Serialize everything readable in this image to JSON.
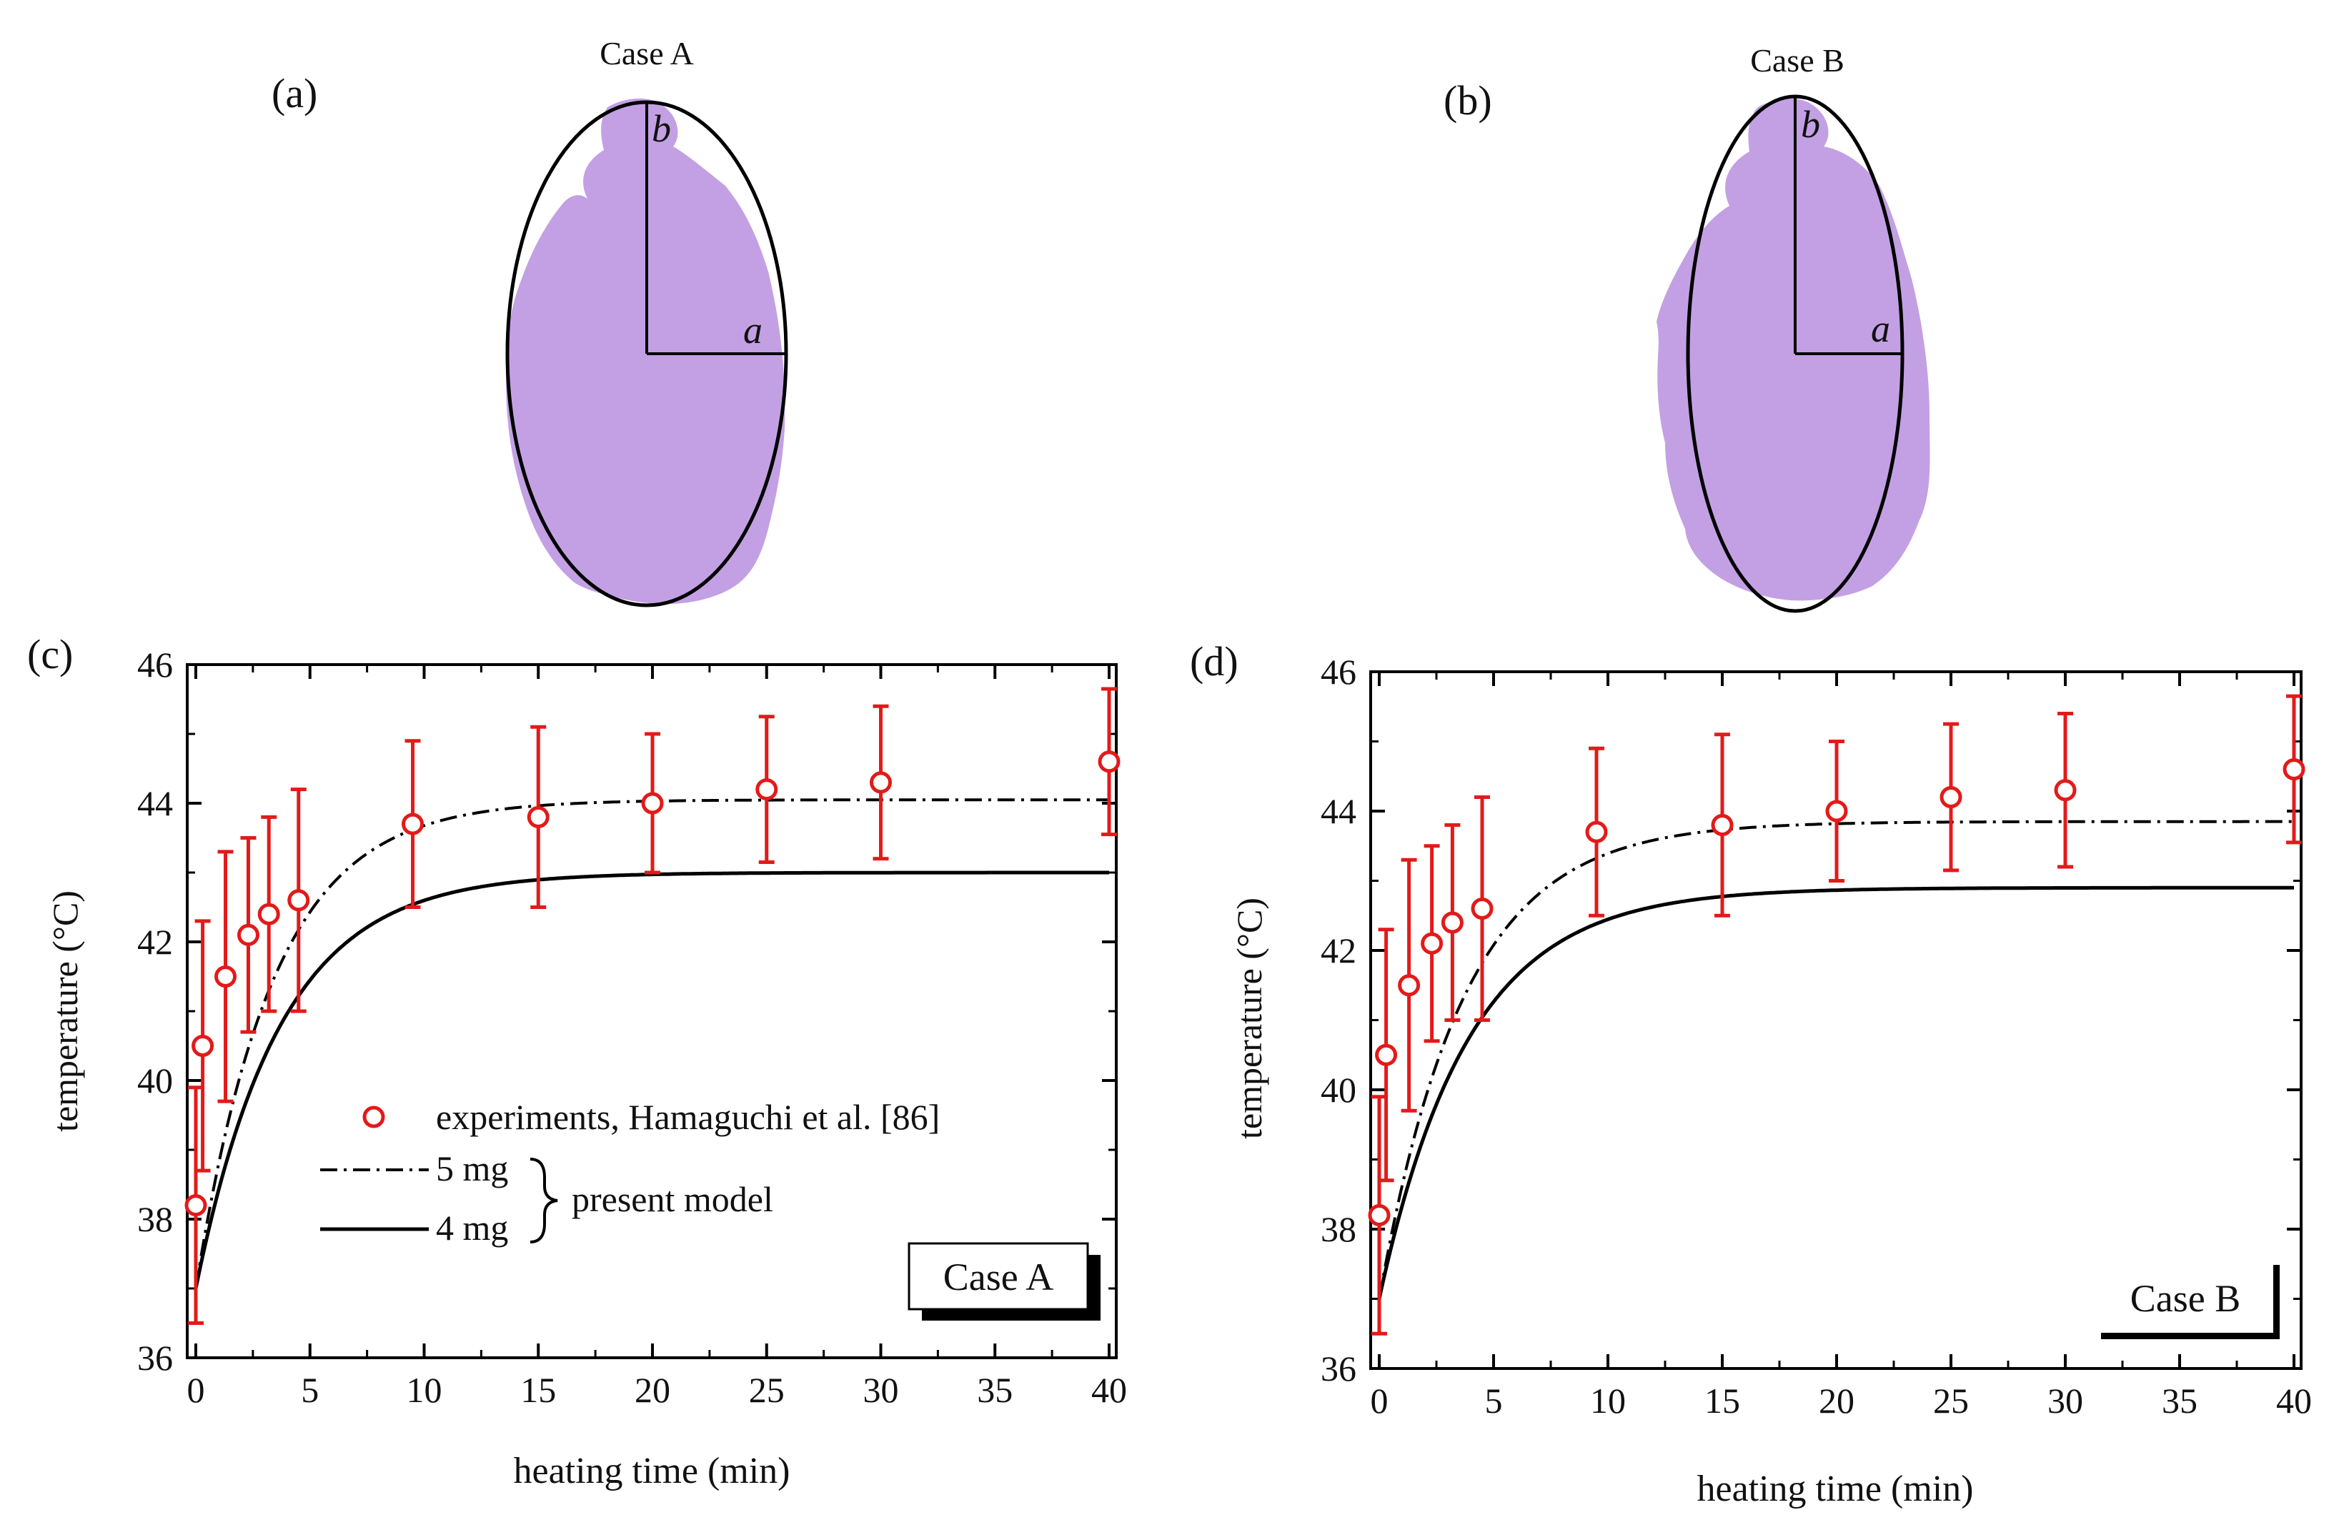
{
  "panels": {
    "a": {
      "label": "(a)",
      "title": "Case A",
      "axis_b": "b",
      "axis_a": "a"
    },
    "b": {
      "label": "(b)",
      "title": "Case B",
      "axis_b": "b",
      "axis_a": "a"
    }
  },
  "colors": {
    "tissue": "#c3a0e3",
    "data": "#e31a1a",
    "line": "#000000"
  },
  "legend": {
    "experiments": "experiments, Hamaguchi et al. [86]",
    "five_mg": "5 mg",
    "four_mg": "4 mg",
    "present_model": "present model"
  },
  "chart_data": [
    {
      "panel_label": "(c)",
      "type": "line",
      "case_label": "Case A",
      "xlabel": "heating time (min)",
      "ylabel": "temperature (°C)",
      "xlim": [
        0,
        40
      ],
      "ylim": [
        36,
        46
      ],
      "xticks": [
        0,
        5,
        10,
        15,
        20,
        25,
        30,
        35,
        40
      ],
      "yticks": [
        36,
        38,
        40,
        42,
        44,
        46
      ],
      "grid": false,
      "legend_position": "lower-left",
      "experiments": {
        "x": [
          0,
          0.3,
          1.3,
          2.3,
          3.2,
          4.5,
          9.5,
          15,
          20,
          25,
          30,
          40
        ],
        "y": [
          38.2,
          40.5,
          41.5,
          42.1,
          42.4,
          42.6,
          43.7,
          43.8,
          44.0,
          44.2,
          44.3,
          44.6
        ],
        "err": [
          1.7,
          1.8,
          1.8,
          1.4,
          1.4,
          1.6,
          1.2,
          1.3,
          1.0,
          1.05,
          1.1,
          1.05
        ]
      },
      "series": [
        {
          "name": "5 mg",
          "style": "dashdot",
          "T0": 37.0,
          "Tinf": 44.05,
          "tau": 3.4
        },
        {
          "name": "4 mg",
          "style": "solid",
          "T0": 37.0,
          "Tinf": 43.0,
          "tau": 3.7
        }
      ]
    },
    {
      "panel_label": "(d)",
      "type": "line",
      "case_label": "Case B",
      "xlabel": "heating time (min)",
      "ylabel": "temperature (°C)",
      "xlim": [
        0,
        40
      ],
      "ylim": [
        36,
        46
      ],
      "xticks": [
        0,
        5,
        10,
        15,
        20,
        25,
        30,
        35,
        40
      ],
      "yticks": [
        36,
        38,
        40,
        42,
        44,
        46
      ],
      "grid": false,
      "legend_position": "none",
      "experiments": {
        "x": [
          0,
          0.3,
          1.3,
          2.3,
          3.2,
          4.5,
          9.5,
          15,
          20,
          25,
          30,
          40
        ],
        "y": [
          38.2,
          40.5,
          41.5,
          42.1,
          42.4,
          42.6,
          43.7,
          43.8,
          44.0,
          44.2,
          44.3,
          44.6
        ],
        "err": [
          1.7,
          1.8,
          1.8,
          1.4,
          1.4,
          1.6,
          1.2,
          1.3,
          1.0,
          1.05,
          1.1,
          1.05
        ]
      },
      "series": [
        {
          "name": "5 mg",
          "style": "dashdot",
          "T0": 37.0,
          "Tinf": 43.85,
          "tau": 3.7
        },
        {
          "name": "4 mg",
          "style": "solid",
          "T0": 37.0,
          "Tinf": 42.9,
          "tau": 3.9
        }
      ]
    }
  ]
}
